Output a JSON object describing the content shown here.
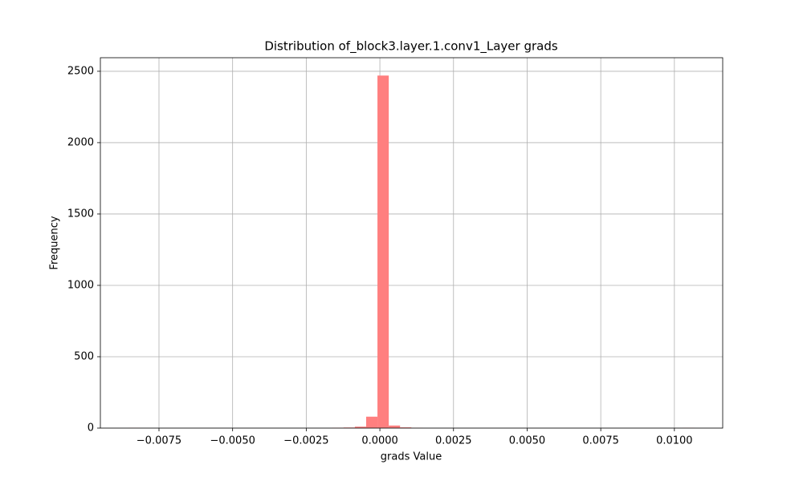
{
  "chart_data": {
    "type": "histogram",
    "title": "Distribution of_block3.layer.1.conv1_Layer grads",
    "xlabel": "grads Value",
    "ylabel": "Frequency",
    "bins": [
      -0.00853,
      -0.008146,
      -0.007762,
      -0.007378,
      -0.006994,
      -0.00661,
      -0.006226,
      -0.005842,
      -0.005458,
      -0.005074,
      -0.00469,
      -0.004306,
      -0.003922,
      -0.003538,
      -0.003154,
      -0.00277,
      -0.002386,
      -0.002002,
      -0.001618,
      -0.001234,
      -0.00085,
      -0.000466,
      -8.2e-05,
      0.000302,
      0.000686,
      0.00107,
      0.001454,
      0.001838,
      0.002222,
      0.002606,
      0.00299,
      0.003374,
      0.003758,
      0.004142,
      0.004526,
      0.00491,
      0.005294,
      0.005678,
      0.006062,
      0.006446,
      0.00683,
      0.007214,
      0.007598,
      0.007982,
      0.008366,
      0.00875,
      0.009134,
      0.009518,
      0.009902,
      0.010286,
      0.01067
    ],
    "counts": [
      1,
      0,
      0,
      0,
      0,
      0,
      0,
      0,
      0,
      0,
      0,
      0,
      0,
      0,
      0,
      0,
      0,
      0,
      2,
      4,
      10,
      80,
      2470,
      18,
      5,
      1,
      0,
      0,
      0,
      0,
      0,
      0,
      0,
      0,
      0,
      0,
      0,
      0,
      0,
      0,
      0,
      0,
      0,
      0,
      0,
      0,
      0,
      0,
      0,
      1
    ],
    "color": "#ff7f7f",
    "xlim": [
      -0.00949,
      0.01164
    ],
    "xticks": [
      {
        "value": -0.0075,
        "label": "−0.0075"
      },
      {
        "value": -0.005,
        "label": "−0.0050"
      },
      {
        "value": -0.0025,
        "label": "−0.0025"
      },
      {
        "value": 0,
        "label": "0.0000"
      },
      {
        "value": 0.0025,
        "label": "0.0025"
      },
      {
        "value": 0.005,
        "label": "0.0050"
      },
      {
        "value": 0.0075,
        "label": "0.0075"
      },
      {
        "value": 0.01,
        "label": "0.0100"
      }
    ],
    "ylim": [
      0,
      2595
    ],
    "yticks": [
      0,
      500,
      1000,
      1500,
      2000,
      2500
    ],
    "grid": true
  }
}
